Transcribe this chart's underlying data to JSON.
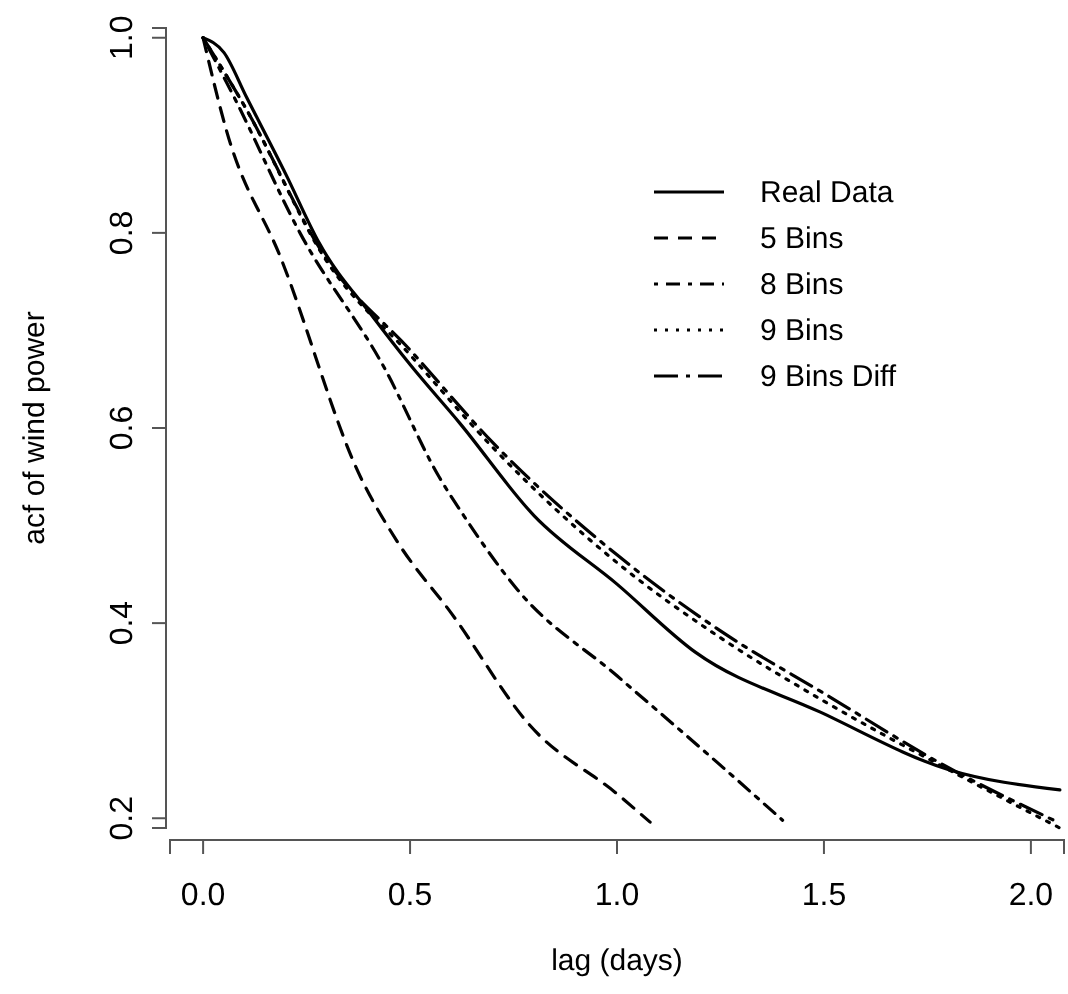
{
  "chart_data": {
    "type": "line",
    "xlabel": "lag (days)",
    "ylabel": "acf of wind power",
    "xlim": [
      -0.08,
      2.08
    ],
    "ylim": [
      0.19,
      1.01
    ],
    "xticks": [
      {
        "value": 0,
        "label": "0.0"
      },
      0.5,
      {
        "value": 1,
        "label": "1.0"
      },
      1.5,
      {
        "value": 2,
        "label": "2.0"
      }
    ],
    "yticks": [
      0.2,
      0.4,
      0.6,
      0.8,
      {
        "value": 1,
        "label": "1.0"
      }
    ],
    "legend": "top right",
    "grid": false,
    "marker": "none",
    "series": [
      {
        "name": "Real Data",
        "color": "#000000",
        "line_style": "solid",
        "x": [
          0,
          0.05,
          0.105,
          0.2,
          0.28,
          0.41,
          0.5,
          0.62,
          0.8,
          1.0,
          1.19,
          1.49,
          1.8,
          2.07
        ],
        "values": [
          1.0,
          0.985,
          0.939,
          0.86,
          0.79,
          0.714,
          0.665,
          0.605,
          0.51,
          0.44,
          0.37,
          0.309,
          0.25,
          0.229
        ]
      },
      {
        "name": "5 Bins",
        "color": "#000000",
        "line_style": "dashed",
        "x": [
          0,
          0.057,
          0.187,
          0.38,
          0.47,
          0.6,
          0.79,
          1.0,
          1.08
        ],
        "values": [
          1.0,
          0.904,
          0.775,
          0.55,
          0.483,
          0.41,
          0.295,
          0.225,
          0.196
        ]
      },
      {
        "name": "8 Bins",
        "color": "#000000",
        "line_style": "dashdot",
        "x": [
          0,
          0.075,
          0.234,
          0.44,
          0.57,
          0.63,
          0.76,
          1.0,
          1.24,
          1.4
        ],
        "values": [
          1.0,
          0.939,
          0.8,
          0.66,
          0.55,
          0.51,
          0.434,
          0.346,
          0.258,
          0.198
        ]
      },
      {
        "name": "9 Bins",
        "color": "#000000",
        "line_style": "dotted",
        "x": [
          0,
          0.1,
          0.3,
          0.5,
          0.7,
          1.0,
          1.25,
          1.5,
          1.8,
          2.07
        ],
        "values": [
          1.0,
          0.93,
          0.77,
          0.675,
          0.58,
          0.462,
          0.385,
          0.32,
          0.25,
          0.19
        ]
      },
      {
        "name": "9 Bins Diff",
        "color": "#000000",
        "line_style": "longdash",
        "x": [
          0,
          0.1,
          0.3,
          0.5,
          0.7,
          1.0,
          1.25,
          1.5,
          1.8,
          2.07
        ],
        "values": [
          1.0,
          0.93,
          0.772,
          0.68,
          0.585,
          0.47,
          0.392,
          0.328,
          0.252,
          0.195
        ]
      }
    ]
  }
}
